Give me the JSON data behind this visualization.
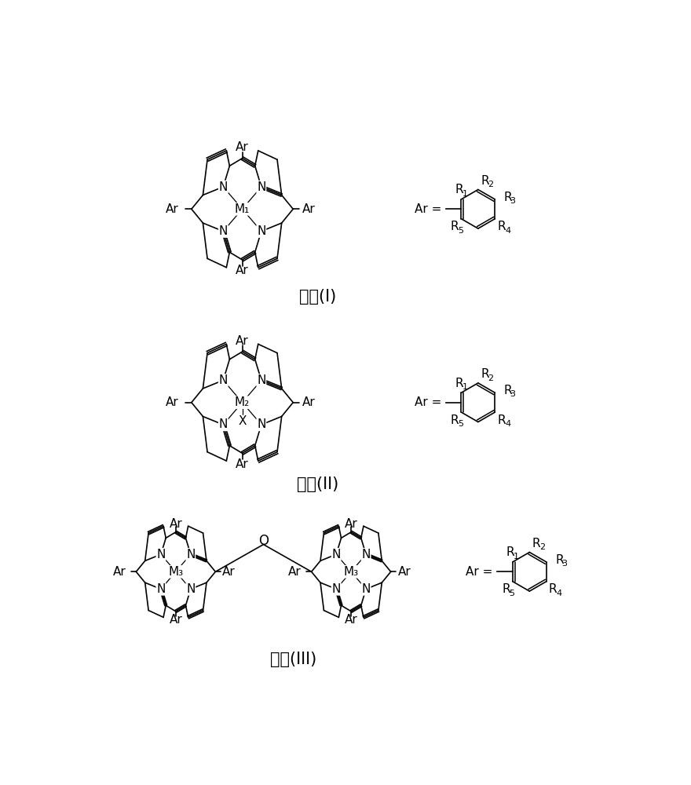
{
  "background_color": "#ffffff",
  "formula_labels": [
    "通式(I)",
    "通式(II)",
    "通式(III)"
  ],
  "label_fontsize": 15,
  "fig_width": 8.8,
  "fig_height": 10.0
}
